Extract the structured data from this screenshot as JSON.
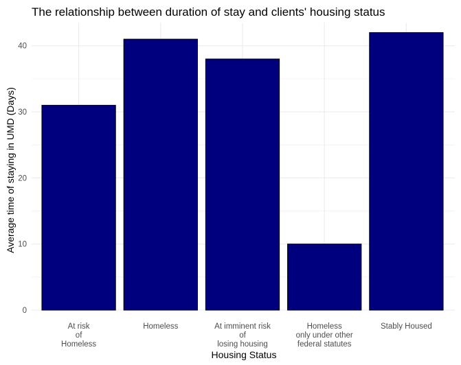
{
  "chart_data": {
    "type": "bar",
    "title": "The relationship between duration of stay and clients' housing status",
    "xlabel": "Housing Status",
    "ylabel": "Average time of staying in UMD (Days)",
    "categories": [
      [
        "At risk",
        "of",
        "Homeless"
      ],
      [
        "Homeless"
      ],
      [
        "At imminent risk",
        "of",
        "losing housing"
      ],
      [
        "Homeless",
        "only under other",
        "federal statutes"
      ],
      [
        "Stably Housed"
      ]
    ],
    "values": [
      31,
      41,
      38,
      10,
      42
    ],
    "ylim": [
      0,
      43.5
    ],
    "yticks": [
      0,
      10,
      20,
      30,
      40
    ],
    "grid": true,
    "bar_color": "#00007F",
    "bar_edge_color": "#000000",
    "gridline_color": "#EBEBEB"
  }
}
